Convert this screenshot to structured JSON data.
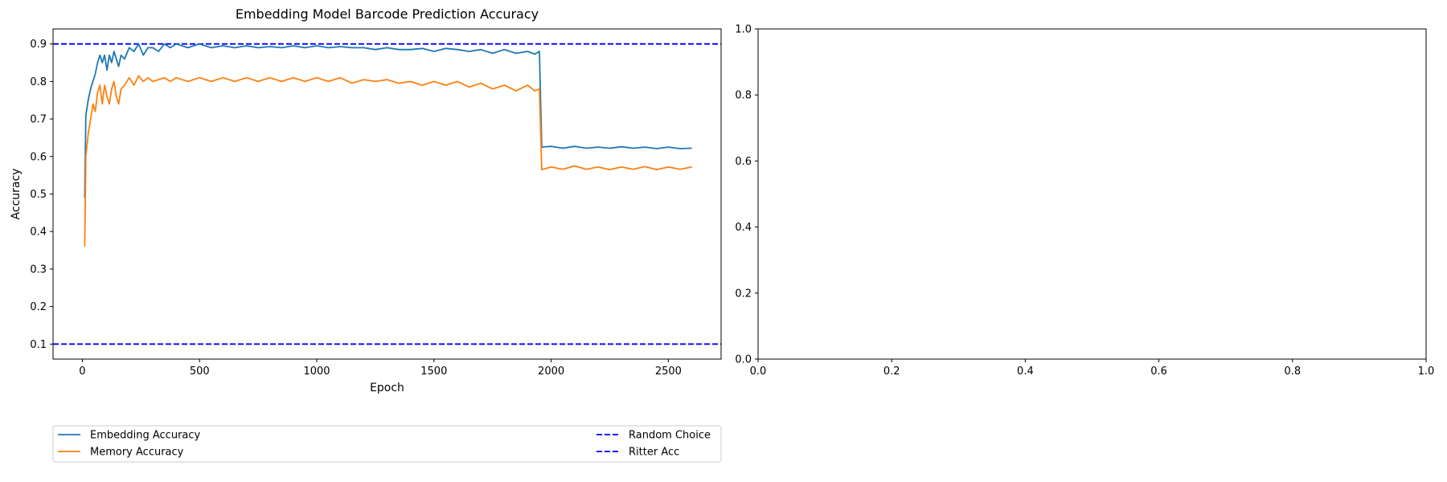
{
  "chart_data": [
    {
      "type": "line",
      "title": "Embedding Model Barcode Prediction Accuracy",
      "xlabel": "Epoch",
      "ylabel": "Accuracy",
      "xlim": [
        -125,
        2725
      ],
      "ylim": [
        0.06,
        0.94
      ],
      "xticks": [
        0,
        500,
        1000,
        1500,
        2000,
        2500
      ],
      "yticks": [
        0.1,
        0.2,
        0.3,
        0.4,
        0.5,
        0.6,
        0.7,
        0.8,
        0.9
      ],
      "grid": false,
      "legend_position": "below",
      "series": [
        {
          "name": "Embedding Accuracy",
          "color": "#1f77b4",
          "style": "solid",
          "points": [
            [
              10,
              0.49
            ],
            [
              15,
              0.71
            ],
            [
              25,
              0.75
            ],
            [
              35,
              0.78
            ],
            [
              45,
              0.8
            ],
            [
              55,
              0.82
            ],
            [
              65,
              0.85
            ],
            [
              75,
              0.87
            ],
            [
              85,
              0.85
            ],
            [
              95,
              0.87
            ],
            [
              105,
              0.83
            ],
            [
              115,
              0.87
            ],
            [
              125,
              0.85
            ],
            [
              135,
              0.88
            ],
            [
              145,
              0.86
            ],
            [
              155,
              0.84
            ],
            [
              165,
              0.87
            ],
            [
              180,
              0.86
            ],
            [
              200,
              0.89
            ],
            [
              220,
              0.88
            ],
            [
              240,
              0.9
            ],
            [
              260,
              0.87
            ],
            [
              280,
              0.89
            ],
            [
              300,
              0.89
            ],
            [
              325,
              0.88
            ],
            [
              350,
              0.9
            ],
            [
              375,
              0.89
            ],
            [
              400,
              0.9
            ],
            [
              450,
              0.89
            ],
            [
              500,
              0.9
            ],
            [
              550,
              0.89
            ],
            [
              600,
              0.895
            ],
            [
              650,
              0.89
            ],
            [
              700,
              0.895
            ],
            [
              750,
              0.89
            ],
            [
              800,
              0.893
            ],
            [
              850,
              0.89
            ],
            [
              900,
              0.895
            ],
            [
              950,
              0.89
            ],
            [
              1000,
              0.895
            ],
            [
              1050,
              0.89
            ],
            [
              1100,
              0.893
            ],
            [
              1150,
              0.89
            ],
            [
              1200,
              0.89
            ],
            [
              1250,
              0.885
            ],
            [
              1300,
              0.89
            ],
            [
              1350,
              0.885
            ],
            [
              1400,
              0.885
            ],
            [
              1450,
              0.888
            ],
            [
              1500,
              0.88
            ],
            [
              1550,
              0.888
            ],
            [
              1600,
              0.885
            ],
            [
              1650,
              0.88
            ],
            [
              1700,
              0.885
            ],
            [
              1750,
              0.875
            ],
            [
              1800,
              0.885
            ],
            [
              1850,
              0.875
            ],
            [
              1900,
              0.88
            ],
            [
              1930,
              0.873
            ],
            [
              1950,
              0.88
            ],
            [
              1960,
              0.625
            ],
            [
              2000,
              0.627
            ],
            [
              2050,
              0.622
            ],
            [
              2100,
              0.627
            ],
            [
              2150,
              0.622
            ],
            [
              2200,
              0.625
            ],
            [
              2250,
              0.622
            ],
            [
              2300,
              0.626
            ],
            [
              2350,
              0.622
            ],
            [
              2400,
              0.625
            ],
            [
              2450,
              0.621
            ],
            [
              2500,
              0.625
            ],
            [
              2550,
              0.621
            ],
            [
              2600,
              0.622
            ]
          ]
        },
        {
          "name": "Memory Accuracy",
          "color": "#ff7f0e",
          "style": "solid",
          "points": [
            [
              10,
              0.36
            ],
            [
              15,
              0.6
            ],
            [
              25,
              0.66
            ],
            [
              35,
              0.7
            ],
            [
              45,
              0.74
            ],
            [
              55,
              0.72
            ],
            [
              65,
              0.77
            ],
            [
              75,
              0.79
            ],
            [
              85,
              0.74
            ],
            [
              95,
              0.79
            ],
            [
              105,
              0.76
            ],
            [
              115,
              0.74
            ],
            [
              125,
              0.78
            ],
            [
              135,
              0.8
            ],
            [
              145,
              0.76
            ],
            [
              155,
              0.74
            ],
            [
              165,
              0.78
            ],
            [
              180,
              0.79
            ],
            [
              200,
              0.81
            ],
            [
              220,
              0.79
            ],
            [
              240,
              0.815
            ],
            [
              260,
              0.8
            ],
            [
              280,
              0.81
            ],
            [
              300,
              0.8
            ],
            [
              325,
              0.805
            ],
            [
              350,
              0.81
            ],
            [
              375,
              0.8
            ],
            [
              400,
              0.81
            ],
            [
              450,
              0.8
            ],
            [
              500,
              0.81
            ],
            [
              550,
              0.8
            ],
            [
              600,
              0.81
            ],
            [
              650,
              0.8
            ],
            [
              700,
              0.81
            ],
            [
              750,
              0.8
            ],
            [
              800,
              0.81
            ],
            [
              850,
              0.8
            ],
            [
              900,
              0.81
            ],
            [
              950,
              0.8
            ],
            [
              1000,
              0.81
            ],
            [
              1050,
              0.8
            ],
            [
              1100,
              0.81
            ],
            [
              1150,
              0.795
            ],
            [
              1200,
              0.805
            ],
            [
              1250,
              0.8
            ],
            [
              1300,
              0.805
            ],
            [
              1350,
              0.795
            ],
            [
              1400,
              0.8
            ],
            [
              1450,
              0.79
            ],
            [
              1500,
              0.8
            ],
            [
              1550,
              0.79
            ],
            [
              1600,
              0.8
            ],
            [
              1650,
              0.785
            ],
            [
              1700,
              0.795
            ],
            [
              1750,
              0.78
            ],
            [
              1800,
              0.79
            ],
            [
              1850,
              0.775
            ],
            [
              1900,
              0.79
            ],
            [
              1930,
              0.775
            ],
            [
              1950,
              0.78
            ],
            [
              1960,
              0.565
            ],
            [
              2000,
              0.572
            ],
            [
              2050,
              0.566
            ],
            [
              2100,
              0.575
            ],
            [
              2150,
              0.566
            ],
            [
              2200,
              0.572
            ],
            [
              2250,
              0.565
            ],
            [
              2300,
              0.572
            ],
            [
              2350,
              0.566
            ],
            [
              2400,
              0.573
            ],
            [
              2450,
              0.565
            ],
            [
              2500,
              0.572
            ],
            [
              2550,
              0.566
            ],
            [
              2600,
              0.572
            ]
          ]
        }
      ],
      "reference_lines": [
        {
          "name": "Random Choice",
          "y": 0.1,
          "color": "#0000ff",
          "style": "dashed"
        },
        {
          "name": "Ritter Acc",
          "y": 0.9,
          "color": "#0000ff",
          "style": "dashed"
        }
      ]
    },
    {
      "type": "line",
      "title": "",
      "xlabel": "",
      "ylabel": "",
      "xlim": [
        0,
        1
      ],
      "ylim": [
        0,
        1
      ],
      "xticks": [
        0.0,
        0.2,
        0.4,
        0.6,
        0.8,
        1.0
      ],
      "yticks": [
        0.0,
        0.2,
        0.4,
        0.6,
        0.8,
        1.0
      ],
      "grid": false,
      "series": []
    }
  ]
}
